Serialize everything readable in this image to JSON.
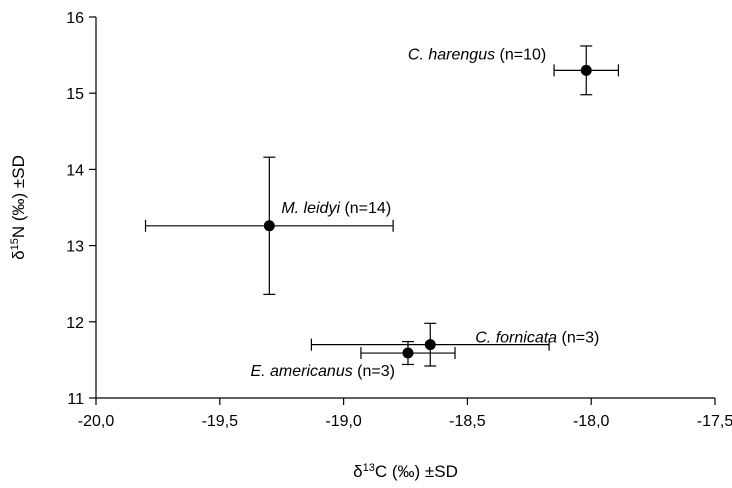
{
  "chart_data": {
    "type": "scatter",
    "xlabel": {
      "prefix": "δ",
      "sup": "13",
      "suffix": "C (‰) ±SD"
    },
    "ylabel": {
      "prefix": "δ",
      "sup": "15",
      "suffix": "N (‰) ±SD"
    },
    "xlim": [
      -20.0,
      -17.5
    ],
    "ylim": [
      11,
      16
    ],
    "x_ticks": [
      -20.0,
      -19.5,
      -19.0,
      -18.5,
      -18.0,
      -17.5
    ],
    "x_tick_labels": [
      "-20,0",
      "-19,5",
      "-19,0",
      "-18,5",
      "-18,0",
      "-17,5"
    ],
    "y_ticks": [
      11,
      12,
      13,
      14,
      15,
      16
    ],
    "y_tick_labels": [
      "11",
      "12",
      "13",
      "14",
      "15",
      "16"
    ],
    "grid": false,
    "legend": "none",
    "marker_color": "#000000",
    "points": [
      {
        "species": "C. harengus",
        "n": "(n=10)",
        "x": -18.02,
        "y": 15.3,
        "x_sd": 0.13,
        "y_sd": 0.32,
        "label_anchor": "end",
        "label_dx": -40,
        "label_dy": -11
      },
      {
        "species": "M. leidyi",
        "n": "(n=14)",
        "x": -19.3,
        "y": 13.26,
        "x_sd": 0.5,
        "y_sd": 0.9,
        "label_anchor": "start",
        "label_dx": 12,
        "label_dy": -13
      },
      {
        "species": "C. fornicata",
        "n": "(n=3)",
        "x": -18.65,
        "y": 11.7,
        "x_sd": 0.48,
        "y_sd": 0.28,
        "label_anchor": "start",
        "label_dx": 45,
        "label_dy": -2
      },
      {
        "species": "E. americanus",
        "n": "(n=3)",
        "x": -18.74,
        "y": 11.59,
        "x_sd": 0.19,
        "y_sd": 0.15,
        "label_anchor": "end",
        "label_dx": -13,
        "label_dy": 23
      }
    ]
  }
}
